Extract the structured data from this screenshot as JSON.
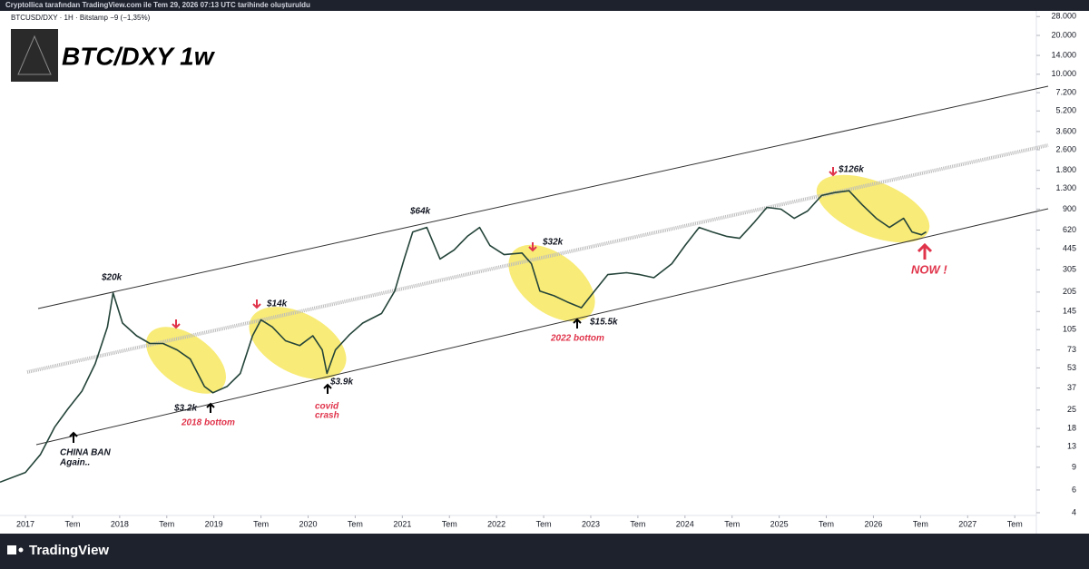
{
  "header": "Cryptollica tarafından TradingView.com ile Tem 29, 2026 07:13 UTC tarihinde oluşturuldu",
  "symbol": "BTCUSD/DXY · 1H · Bitstamp  −9 (−1,35%)",
  "footer": "TradingView",
  "chart_data": {
    "type": "line",
    "title": "BTC/DXY 1w",
    "log_scale": true,
    "grid": false,
    "color": "#24443a",
    "x": [
      2016.73,
      2017.0,
      2017.16,
      2017.31,
      2017.45,
      2017.6,
      2017.74,
      2017.87,
      2017.93,
      2018.03,
      2018.18,
      2018.32,
      2018.46,
      2018.61,
      2018.75,
      2018.9,
      2018.99,
      2019.14,
      2019.28,
      2019.41,
      2019.5,
      2019.62,
      2019.76,
      2019.91,
      2020.05,
      2020.15,
      2020.2,
      2020.29,
      2020.44,
      2020.58,
      2020.78,
      2020.92,
      2021.02,
      2021.11,
      2021.26,
      2021.4,
      2021.55,
      2021.69,
      2021.82,
      2021.93,
      2022.08,
      2022.27,
      2022.37,
      2022.46,
      2022.61,
      2022.75,
      2022.9,
      2023.04,
      2023.18,
      2023.38,
      2023.52,
      2023.67,
      2023.86,
      2024.0,
      2024.15,
      2024.29,
      2024.44,
      2024.58,
      2024.73,
      2024.87,
      2025.02,
      2025.16,
      2025.3,
      2025.45,
      2025.59,
      2025.74,
      2025.88,
      2026.03,
      2026.17,
      2026.32,
      2026.41,
      2026.51,
      2026.56
    ],
    "values": [
      6.9,
      8.2,
      11.3,
      18.4,
      25.5,
      35,
      57,
      110,
      202,
      118,
      94,
      82,
      82,
      73,
      62,
      38,
      34,
      38,
      48,
      94,
      125,
      110,
      86,
      79,
      94,
      73,
      48,
      73,
      96,
      118,
      140,
      209,
      370,
      600,
      650,
      370,
      435,
      555,
      650,
      470,
      400,
      412,
      340,
      209,
      192,
      172,
      155,
      209,
      280,
      290,
      280,
      265,
      340,
      470,
      650,
      600,
      555,
      535,
      705,
      930,
      900,
      765,
      870,
      1150,
      1210,
      1250,
      975,
      765,
      650,
      765,
      600,
      570,
      600
    ],
    "xlim": [
      2016.73,
      2027.71
    ],
    "xticks": [
      {
        "value": 2017,
        "label": "2017"
      },
      {
        "value": 2017.5,
        "label": "Tem"
      },
      {
        "value": 2018,
        "label": "2018"
      },
      {
        "value": 2018.5,
        "label": "Tem"
      },
      {
        "value": 2019,
        "label": "2019"
      },
      {
        "value": 2019.5,
        "label": "Tem"
      },
      {
        "value": 2020,
        "label": "2020"
      },
      {
        "value": 2020.5,
        "label": "Tem"
      },
      {
        "value": 2021,
        "label": "2021"
      },
      {
        "value": 2021.5,
        "label": "Tem"
      },
      {
        "value": 2022,
        "label": "2022"
      },
      {
        "value": 2022.5,
        "label": "Tem"
      },
      {
        "value": 2023,
        "label": "2023"
      },
      {
        "value": 2023.5,
        "label": "Tem"
      },
      {
        "value": 2024,
        "label": "2024"
      },
      {
        "value": 2024.5,
        "label": "Tem"
      },
      {
        "value": 2025,
        "label": "2025"
      },
      {
        "value": 2025.5,
        "label": "Tem"
      },
      {
        "value": 2026,
        "label": "2026"
      },
      {
        "value": 2026.5,
        "label": "Tem"
      },
      {
        "value": 2027,
        "label": "2027"
      },
      {
        "value": 2027.5,
        "label": "Tem"
      }
    ],
    "ylim": [
      3.4,
      32000
    ],
    "yticks": [
      4,
      6,
      9,
      13,
      18,
      25,
      37,
      53,
      73,
      105,
      145,
      205,
      305,
      445,
      620,
      900,
      {
        "value": 1300,
        "label": "1.300"
      },
      {
        "value": 1800,
        "label": "1.800"
      },
      {
        "value": 2600,
        "label": "2.600"
      },
      {
        "value": 3600,
        "label": "3.600"
      },
      {
        "value": 5200,
        "label": "5.200"
      },
      {
        "value": 7200,
        "label": "7.200"
      },
      {
        "value": 10000,
        "label": "10.000"
      },
      {
        "value": 14000,
        "label": "14.000"
      },
      {
        "value": 20000,
        "label": "20.000"
      },
      {
        "value": 28000,
        "label": "28.000"
      }
    ],
    "annotations": [
      "$20k",
      "$14k",
      "$64k",
      "$32k",
      "$126k",
      "$3.2k",
      "$3.9k",
      "$15.5k",
      "2018 bottom",
      "covid",
      "crash",
      "2022 bottom",
      "CHINA BAN",
      "Again..",
      "NOW !"
    ]
  }
}
